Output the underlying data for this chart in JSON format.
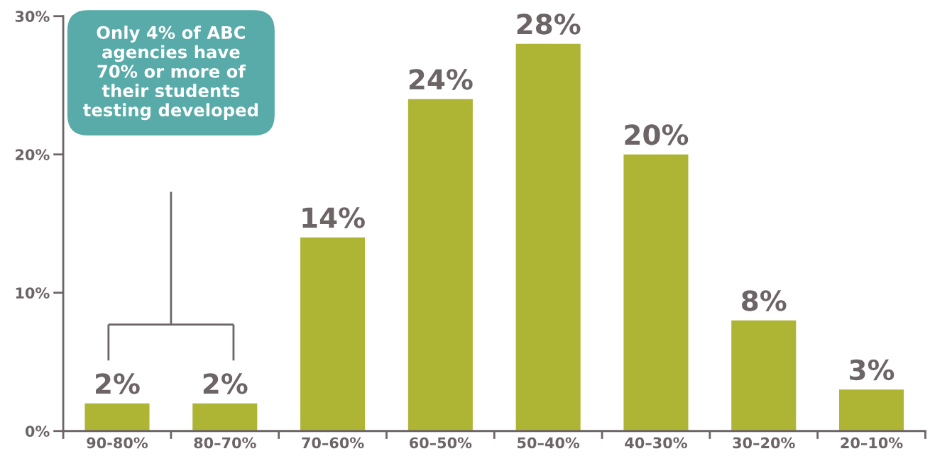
{
  "chart_data": {
    "type": "bar",
    "categories": [
      "90-80%",
      "80–70%",
      "70–60%",
      "60–50%",
      "50–40%",
      "40–30%",
      "30–20%",
      "20–10%"
    ],
    "values": [
      2,
      2,
      14,
      24,
      28,
      20,
      8,
      3
    ],
    "value_labels": [
      "2%",
      "2%",
      "14%",
      "24%",
      "28%",
      "20%",
      "8%",
      "3%"
    ],
    "color": "#aeb535",
    "ylim": [
      0,
      30
    ],
    "yticks": [
      {
        "value": 0,
        "label": "0%"
      },
      {
        "value": 10,
        "label": "10%"
      },
      {
        "value": 20,
        "label": "20%"
      },
      {
        "value": 30,
        "label": "30%"
      }
    ],
    "annotations": [
      "Only 4% of ABC\nagencies have\n70% or more of\ntheir students\ntesting developed"
    ],
    "grid": false,
    "legend": false
  }
}
